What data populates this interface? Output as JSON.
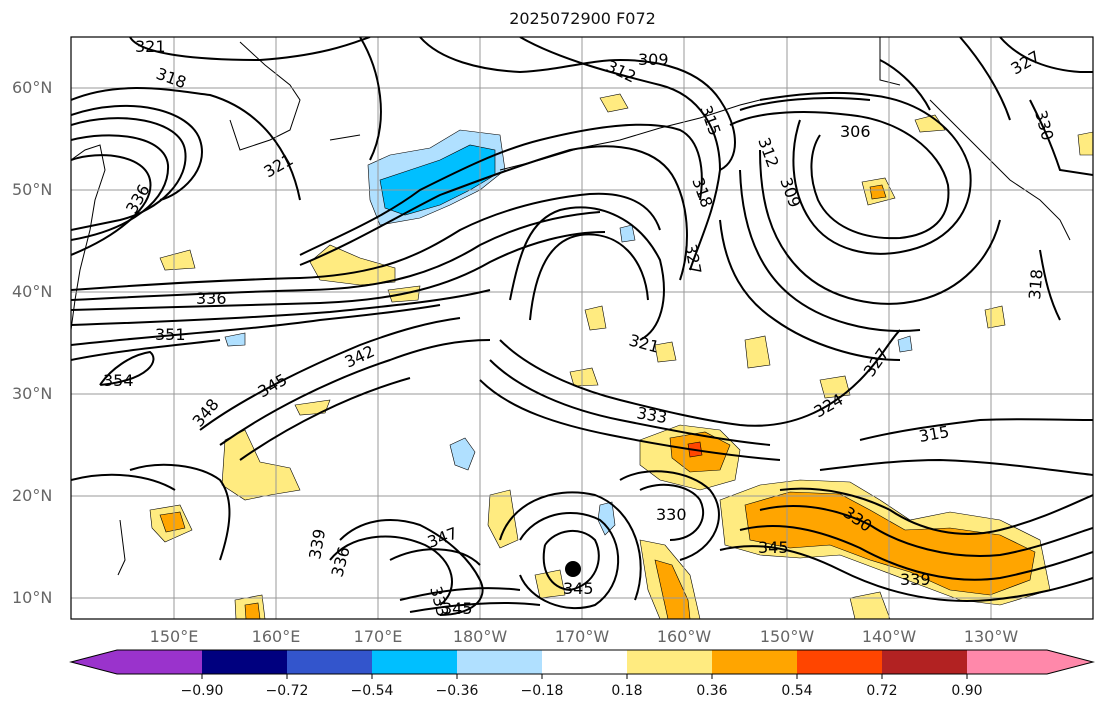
{
  "title": "2025072900 F072",
  "lat_labels": [
    "60°N",
    "50°N",
    "40°N",
    "30°N",
    "20°N",
    "10°N"
  ],
  "lon_labels": [
    "150°E",
    "160°E",
    "170°E",
    "180°W",
    "170°W",
    "160°W",
    "150°W",
    "140°W",
    "130°W"
  ],
  "contour_labels": [
    "321",
    "318",
    "312",
    "309",
    "315",
    "327",
    "321",
    "336",
    "306",
    "312",
    "309",
    "318",
    "330",
    "318",
    "327",
    "336",
    "351",
    "342",
    "354",
    "345",
    "348",
    "321",
    "333",
    "327",
    "324",
    "315",
    "330",
    "339",
    "336",
    "347",
    "333",
    "345",
    "330",
    "345",
    "339"
  ],
  "colorbar": {
    "labels": [
      "−0.90",
      "−0.72",
      "−0.54",
      "−0.36",
      "−0.18",
      "0.18",
      "0.36",
      "0.54",
      "0.72",
      "0.90"
    ],
    "colors": [
      "#9a33cc",
      "#00007f",
      "#3355cc",
      "#00bfff",
      "#b0e0ff",
      "#ffffff",
      "#ffeb80",
      "#ffa500",
      "#ff4500",
      "#b22222",
      "#ff88aa"
    ]
  },
  "colors": {
    "frame": "#000000",
    "contour": "#000000",
    "grid": "#999999",
    "storm": "#000000"
  }
}
